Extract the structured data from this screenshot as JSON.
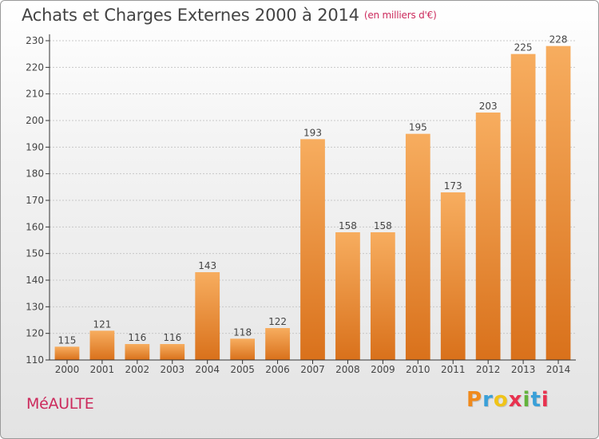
{
  "title": "Achats et Charges Externes 2000 à 2014",
  "unit_note": "(en milliers d'€)",
  "city": "MéAULTE",
  "logo": {
    "text": "Proxiti",
    "letter_colors": [
      "#f08a1c",
      "#3aa0d8",
      "#f0c419",
      "#e8324f",
      "#63b33c",
      "#3aa0d8",
      "#e8324f"
    ]
  },
  "colors": {
    "bar_light": "#f7ad5f",
    "bar_dark": "#d9711b",
    "axis": "#333333",
    "grid": "#c8c8c8",
    "text": "#444444",
    "accent": "#cc2a5c"
  },
  "chart_data": {
    "type": "bar",
    "title": "Achats et Charges Externes 2000 à 2014",
    "xlabel": "",
    "ylabel": "",
    "categories": [
      "2000",
      "2001",
      "2002",
      "2003",
      "2004",
      "2005",
      "2006",
      "2007",
      "2008",
      "2009",
      "2010",
      "2011",
      "2012",
      "2013",
      "2014"
    ],
    "values": [
      115,
      121,
      116,
      116,
      143,
      118,
      122,
      193,
      158,
      158,
      195,
      173,
      203,
      225,
      228
    ],
    "ylim": [
      110,
      230
    ],
    "yticks": [
      110,
      120,
      130,
      140,
      150,
      160,
      170,
      180,
      190,
      200,
      210,
      220,
      230
    ],
    "grid": true,
    "data_labels": true,
    "legend": "none"
  }
}
